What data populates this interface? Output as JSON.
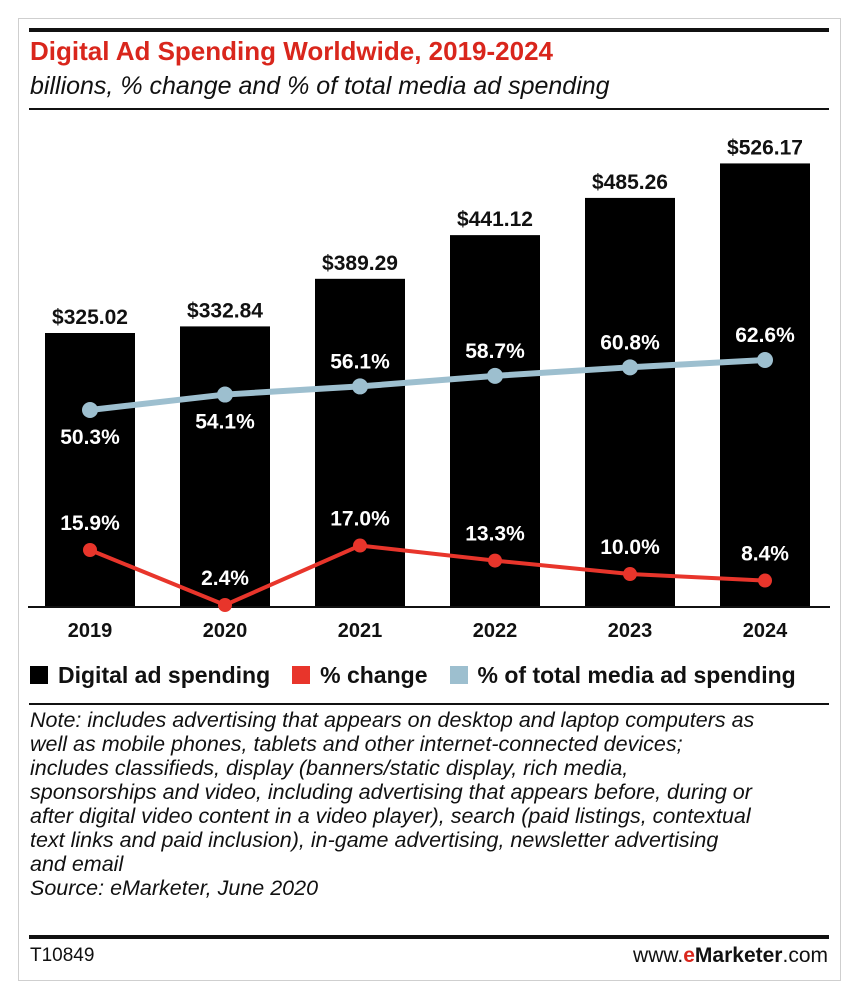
{
  "header": {
    "title": "Digital Ad Spending Worldwide, 2019-2024",
    "subtitle": "billions, % change and % of total media ad spending"
  },
  "chart_data": {
    "type": "bar",
    "categories": [
      "2019",
      "2020",
      "2021",
      "2022",
      "2023",
      "2024"
    ],
    "series": [
      {
        "name": "Digital ad spending",
        "type": "bar",
        "color": "#000000",
        "values": [
          325.02,
          332.84,
          389.29,
          441.12,
          485.26,
          526.17
        ],
        "labels": [
          "$325.02",
          "$332.84",
          "$389.29",
          "$441.12",
          "$485.26",
          "$526.17"
        ]
      },
      {
        "name": "% change",
        "type": "line",
        "color": "#e8352b",
        "values": [
          15.9,
          2.4,
          17.0,
          13.3,
          10.0,
          8.4
        ],
        "labels": [
          "15.9%",
          "2.4%",
          "17.0%",
          "13.3%",
          "10.0%",
          "8.4%"
        ]
      },
      {
        "name": "% of total media ad spending",
        "type": "line",
        "color": "#9dbfcf",
        "values": [
          50.3,
          54.1,
          56.1,
          58.7,
          60.8,
          62.6
        ],
        "labels": [
          "50.3%",
          "54.1%",
          "56.1%",
          "58.7%",
          "60.8%",
          "62.6%"
        ]
      }
    ],
    "legend_position": "bottom",
    "grid": false
  },
  "legend": {
    "items": [
      {
        "label": "Digital ad spending",
        "color": "#000000"
      },
      {
        "label": "% change",
        "color": "#e8352b"
      },
      {
        "label": "% of total media ad spending",
        "color": "#9dbfcf"
      }
    ]
  },
  "note": {
    "lines": [
      "Note: includes advertising that appears on desktop and laptop computers as",
      "well as mobile phones, tablets and other internet-connected devices;",
      "includes classifieds, display (banners/static display, rich media,",
      "sponsorships and video, including advertising that appears before, during or",
      "after digital video content in a video player), search (paid listings, contextual",
      "text links and paid inclusion), in-game advertising, newsletter advertising",
      "and email"
    ],
    "source": "Source: eMarketer, June 2020"
  },
  "footer": {
    "code": "T10849",
    "site_prefix": "www.",
    "site_brand_e": "e",
    "site_brand_rest": "Marketer",
    "site_suffix": ".com"
  }
}
